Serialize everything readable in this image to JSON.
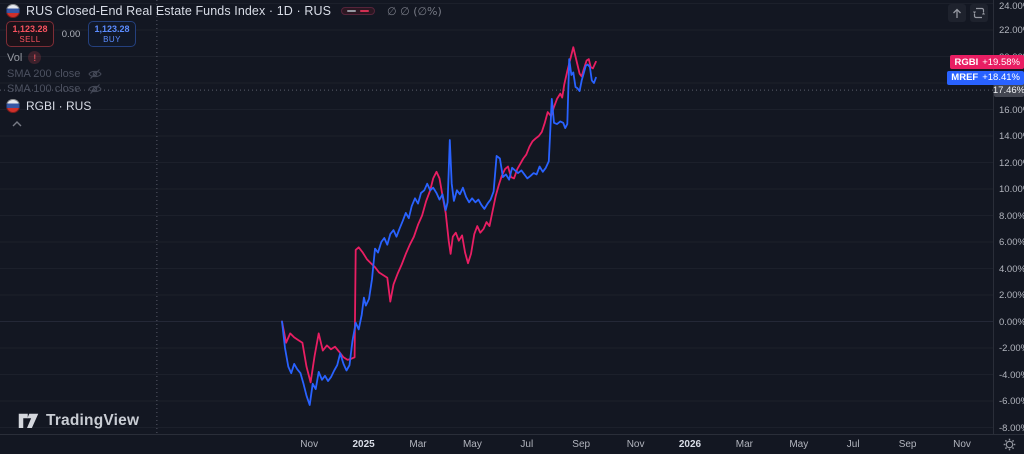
{
  "colors": {
    "bg": "#131722",
    "border": "#2a2e39",
    "grid": "#1c202b",
    "grid_zero": "#242837",
    "axis_text": "#b2b5be",
    "pink": "#e91e63",
    "blue": "#2962ff",
    "sell_red": "#f7525f",
    "buy_blue": "#5b8cff",
    "last_label_bg": "#434651",
    "dashed_line": "#6f7280"
  },
  "header": {
    "flag": "russia-flag-icon",
    "title": "RUS Closed-End Real Estate Funds Index · 1D · RUS",
    "ohlc_values": "∅ ∅ (∅%)",
    "sell": {
      "price": "1,123.28",
      "label": "SELL"
    },
    "spread": "0.00",
    "buy": {
      "price": "1,123.28",
      "label": "BUY"
    },
    "vol": {
      "label": "Vol",
      "badge": "!"
    },
    "indicators": [
      {
        "label": "SMA 200 close",
        "hidden": true
      },
      {
        "label": "SMA 100 close",
        "hidden": true
      }
    ],
    "compare_row": {
      "label": "RGBI · RUS"
    }
  },
  "price_axis": {
    "tick_values": [
      24,
      22,
      20,
      18,
      16,
      14,
      12,
      10,
      8,
      6,
      4,
      2,
      0,
      -2,
      -4,
      -6,
      -8
    ],
    "tick_labels": [
      "24.00%",
      "22.00%",
      "20.00%",
      "18.00%",
      "16.00%",
      "14.00%",
      "12.00%",
      "10.00%",
      "8.00%",
      "6.00%",
      "4.00%",
      "2.00%",
      "0.00%",
      "-2.00%",
      "-4.00%",
      "-6.00%",
      "-8.00%"
    ],
    "series_labels": [
      {
        "symbol": "RGBI",
        "change": "+19.58%",
        "value": 19.58,
        "color": "#e91e63"
      },
      {
        "symbol": "MREF",
        "change": "+18.41%",
        "value": 18.41,
        "color": "#2962ff"
      }
    ],
    "last_value": {
      "label": "17.46%",
      "value": 17.46
    }
  },
  "time_axis": {
    "ticks": [
      {
        "label": "Nov",
        "m": 1,
        "major": false
      },
      {
        "label": "2025",
        "m": 3,
        "major": true
      },
      {
        "label": "Mar",
        "m": 5,
        "major": false
      },
      {
        "label": "May",
        "m": 7,
        "major": false
      },
      {
        "label": "Jul",
        "m": 9,
        "major": false
      },
      {
        "label": "Sep",
        "m": 11,
        "major": false
      },
      {
        "label": "Nov",
        "m": 13,
        "major": false
      },
      {
        "label": "2026",
        "m": 15,
        "major": true
      },
      {
        "label": "Mar",
        "m": 17,
        "major": false
      },
      {
        "label": "May",
        "m": 19,
        "major": false
      },
      {
        "label": "Jul",
        "m": 21,
        "major": false
      },
      {
        "label": "Sep",
        "m": 23,
        "major": false
      },
      {
        "label": "Nov",
        "m": 25,
        "major": false
      }
    ]
  },
  "logo": {
    "text": "TradingView"
  },
  "chart_data": {
    "type": "line",
    "title": "RUS Closed-End Real Estate Funds Index",
    "interval": "1D",
    "y_unit": "percent change",
    "ylim": [
      -8,
      24
    ],
    "grid": "horizontal",
    "x_unit": "months since 2024-10-01",
    "x_range_data": [
      0,
      11.54
    ],
    "last_value_line": {
      "value": 17.46,
      "style": "dashed"
    },
    "history_divider_month": -4.6,
    "series": [
      {
        "name": "RGBI",
        "color": "#e91e63",
        "last_change_pct": 19.58,
        "points": [
          [
            0,
            0
          ],
          [
            0.15,
            -1.6
          ],
          [
            0.3,
            -0.9
          ],
          [
            0.45,
            -1.2
          ],
          [
            0.6,
            -1.4
          ],
          [
            0.75,
            -1.6
          ],
          [
            0.9,
            -3.4
          ],
          [
            1.05,
            -4.6
          ],
          [
            1.2,
            -2.6
          ],
          [
            1.35,
            -0.9
          ],
          [
            1.5,
            -2.2
          ],
          [
            1.65,
            -1.8
          ],
          [
            1.8,
            -2.1
          ],
          [
            1.95,
            -1.9
          ],
          [
            2.11,
            -2.3
          ],
          [
            2.26,
            -2.7
          ],
          [
            2.41,
            -2.9
          ],
          [
            2.56,
            -2.8
          ],
          [
            2.67,
            -2.7
          ],
          [
            2.71,
            5.4
          ],
          [
            2.82,
            5.6
          ],
          [
            2.97,
            5.2
          ],
          [
            3.12,
            4.7
          ],
          [
            3.27,
            4.4
          ],
          [
            3.42,
            4.1
          ],
          [
            3.57,
            3.7
          ],
          [
            3.72,
            3.5
          ],
          [
            3.87,
            3.3
          ],
          [
            3.98,
            1.5
          ],
          [
            4.1,
            2.8
          ],
          [
            4.25,
            3.6
          ],
          [
            4.4,
            4.3
          ],
          [
            4.55,
            5.1
          ],
          [
            4.7,
            5.8
          ],
          [
            4.85,
            6.4
          ],
          [
            5,
            7.3
          ],
          [
            5.15,
            8
          ],
          [
            5.3,
            9.1
          ],
          [
            5.45,
            9.9
          ],
          [
            5.56,
            10.8
          ],
          [
            5.68,
            11.3
          ],
          [
            5.79,
            10.8
          ],
          [
            5.9,
            9.5
          ],
          [
            6.02,
            8.2
          ],
          [
            6.13,
            6.1
          ],
          [
            6.2,
            5.1
          ],
          [
            6.28,
            6.4
          ],
          [
            6.39,
            6.7
          ],
          [
            6.5,
            6.1
          ],
          [
            6.62,
            6.5
          ],
          [
            6.73,
            5.2
          ],
          [
            6.84,
            4.4
          ],
          [
            6.95,
            5.1
          ],
          [
            7.07,
            6.6
          ],
          [
            7.18,
            7.2
          ],
          [
            7.29,
            6.7
          ],
          [
            7.41,
            7
          ],
          [
            7.52,
            7.5
          ],
          [
            7.63,
            7.2
          ],
          [
            7.74,
            8.3
          ],
          [
            7.86,
            9.5
          ],
          [
            7.97,
            10.3
          ],
          [
            8.08,
            11
          ],
          [
            8.2,
            11.5
          ],
          [
            8.31,
            11.7
          ],
          [
            8.42,
            10.9
          ],
          [
            8.53,
            10.8
          ],
          [
            8.65,
            11.5
          ],
          [
            8.76,
            11.9
          ],
          [
            8.87,
            12.3
          ],
          [
            8.98,
            12.6
          ],
          [
            9.1,
            13.2
          ],
          [
            9.21,
            13.6
          ],
          [
            9.32,
            13.8
          ],
          [
            9.44,
            14
          ],
          [
            9.55,
            14.3
          ],
          [
            9.66,
            15
          ],
          [
            9.77,
            15.8
          ],
          [
            9.89,
            15.5
          ],
          [
            10,
            16.2
          ],
          [
            10.11,
            16.8
          ],
          [
            10.23,
            17.2
          ],
          [
            10.3,
            16.9
          ],
          [
            10.38,
            17.9
          ],
          [
            10.49,
            18.9
          ],
          [
            10.6,
            19.8
          ],
          [
            10.71,
            20.7
          ],
          [
            10.79,
            20
          ],
          [
            10.86,
            19.4
          ],
          [
            10.94,
            18.7
          ],
          [
            11.02,
            18.5
          ],
          [
            11.09,
            19
          ],
          [
            11.2,
            19.7
          ],
          [
            11.28,
            19.8
          ],
          [
            11.35,
            19.2
          ],
          [
            11.43,
            19.1
          ],
          [
            11.54,
            19.6
          ]
        ]
      },
      {
        "name": "MREF",
        "color": "#2962ff",
        "last_change_pct": 18.41,
        "points": [
          [
            0,
            0
          ],
          [
            0.11,
            -2
          ],
          [
            0.23,
            -3.4
          ],
          [
            0.34,
            -3.9
          ],
          [
            0.45,
            -3.2
          ],
          [
            0.56,
            -3.6
          ],
          [
            0.68,
            -3.9
          ],
          [
            0.79,
            -4.7
          ],
          [
            0.9,
            -5.6
          ],
          [
            1.02,
            -6.3
          ],
          [
            1.13,
            -4.7
          ],
          [
            1.24,
            -5.1
          ],
          [
            1.35,
            -3.8
          ],
          [
            1.47,
            -4.4
          ],
          [
            1.58,
            -4.1
          ],
          [
            1.69,
            -4.5
          ],
          [
            1.8,
            -4.2
          ],
          [
            1.92,
            -3.7
          ],
          [
            2.03,
            -3.3
          ],
          [
            2.14,
            -2.4
          ],
          [
            2.26,
            -3.2
          ],
          [
            2.37,
            -3.7
          ],
          [
            2.48,
            -3.3
          ],
          [
            2.59,
            -1.5
          ],
          [
            2.71,
            -0.1
          ],
          [
            2.82,
            -0.6
          ],
          [
            2.93,
            0.5
          ],
          [
            3.01,
            1.8
          ],
          [
            3.08,
            1.2
          ],
          [
            3.2,
            1.7
          ],
          [
            3.31,
            3.2
          ],
          [
            3.42,
            5.5
          ],
          [
            3.53,
            5.2
          ],
          [
            3.65,
            6
          ],
          [
            3.76,
            6.3
          ],
          [
            3.87,
            5.8
          ],
          [
            3.98,
            6.6
          ],
          [
            4.1,
            6.9
          ],
          [
            4.21,
            6.4
          ],
          [
            4.32,
            7
          ],
          [
            4.44,
            7.6
          ],
          [
            4.55,
            8.2
          ],
          [
            4.66,
            7.8
          ],
          [
            4.77,
            8.7
          ],
          [
            4.89,
            9.3
          ],
          [
            5,
            8.9
          ],
          [
            5.11,
            9.7
          ],
          [
            5.23,
            9.9
          ],
          [
            5.34,
            10.4
          ],
          [
            5.45,
            9.9
          ],
          [
            5.56,
            10.1
          ],
          [
            5.68,
            9.7
          ],
          [
            5.79,
            9.2
          ],
          [
            5.9,
            9.6
          ],
          [
            6.02,
            8.4
          ],
          [
            6.09,
            9
          ],
          [
            6.17,
            13.7
          ],
          [
            6.24,
            10.4
          ],
          [
            6.32,
            9.1
          ],
          [
            6.43,
            9.9
          ],
          [
            6.54,
            9.6
          ],
          [
            6.65,
            10.1
          ],
          [
            6.77,
            9.4
          ],
          [
            6.88,
            9
          ],
          [
            6.99,
            9.3
          ],
          [
            7.11,
            9
          ],
          [
            7.22,
            9.2
          ],
          [
            7.33,
            8.8
          ],
          [
            7.44,
            8.5
          ],
          [
            7.56,
            8.9
          ],
          [
            7.67,
            9.2
          ],
          [
            7.78,
            9.8
          ],
          [
            7.89,
            12.5
          ],
          [
            8.01,
            12.3
          ],
          [
            8.12,
            10.9
          ],
          [
            8.23,
            11.1
          ],
          [
            8.35,
            10.7
          ],
          [
            8.46,
            11.6
          ],
          [
            8.57,
            11.4
          ],
          [
            8.68,
            11.2
          ],
          [
            8.8,
            11.4
          ],
          [
            8.91,
            11.1
          ],
          [
            9.02,
            10.8
          ],
          [
            9.14,
            11
          ],
          [
            9.25,
            11.2
          ],
          [
            9.36,
            11.1
          ],
          [
            9.47,
            11.7
          ],
          [
            9.59,
            11.3
          ],
          [
            9.7,
            11.6
          ],
          [
            9.81,
            12.1
          ],
          [
            9.92,
            16.8
          ],
          [
            10,
            15
          ],
          [
            10.11,
            14.9
          ],
          [
            10.23,
            15.1
          ],
          [
            10.34,
            15
          ],
          [
            10.41,
            14.6
          ],
          [
            10.49,
            14.9
          ],
          [
            10.56,
            19.8
          ],
          [
            10.64,
            18.6
          ],
          [
            10.71,
            18.8
          ],
          [
            10.79,
            17.7
          ],
          [
            10.86,
            17.6
          ],
          [
            10.94,
            17.4
          ],
          [
            11.02,
            18.2
          ],
          [
            11.09,
            18.7
          ],
          [
            11.17,
            19.3
          ],
          [
            11.24,
            19.4
          ],
          [
            11.32,
            19.2
          ],
          [
            11.39,
            18.2
          ],
          [
            11.47,
            18
          ],
          [
            11.54,
            18.4
          ]
        ]
      }
    ]
  }
}
